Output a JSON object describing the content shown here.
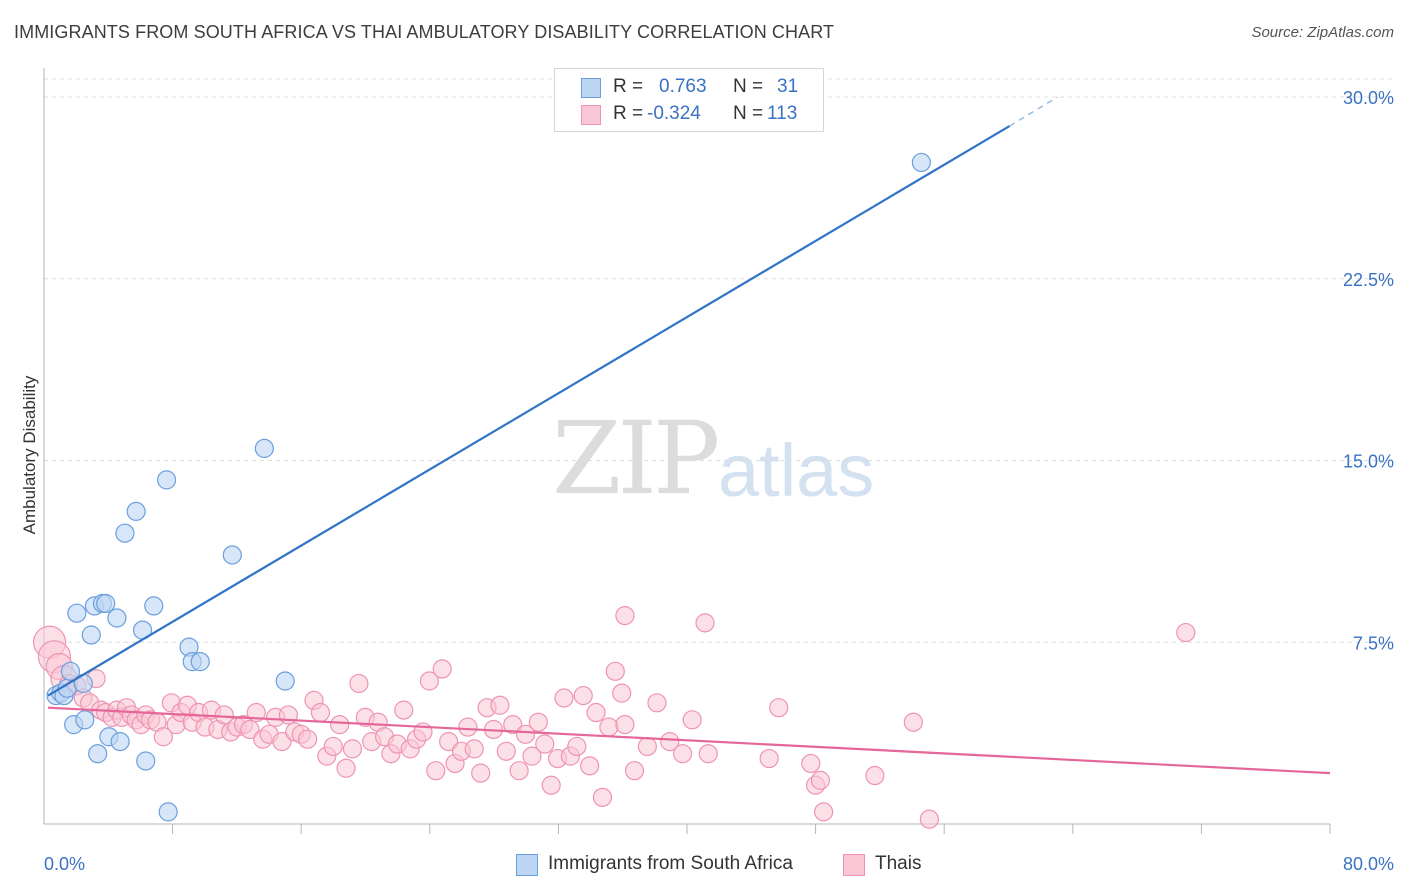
{
  "header": {
    "title": "IMMIGRANTS FROM SOUTH AFRICA VS THAI AMBULATORY DISABILITY CORRELATION CHART",
    "source": "Source: ZipAtlas.com"
  },
  "watermark": {
    "zip": "ZIP",
    "atlas": "atlas"
  },
  "legend": {
    "rows": [
      {
        "r_label": "R =",
        "r_value": "0.763",
        "n_label": "N =",
        "n_value": "31",
        "color": "#7fb0e8"
      },
      {
        "r_label": "R =",
        "r_value": "-0.324",
        "n_label": "N =",
        "n_value": "113",
        "color": "#f5a0bb"
      }
    ]
  },
  "bottom_legend": {
    "series1": "Immigrants from South Africa",
    "series2": "Thais"
  },
  "colors": {
    "blue_fill": "#bcd6f4",
    "blue_stroke": "#6b9fdc",
    "blue_line": "#2f74c8",
    "pink_fill": "#f9c6d6",
    "pink_stroke": "#ee94b2",
    "pink_line": "#e5679a",
    "axis_text": "#3a72c4",
    "grid": "#dcdcdc"
  },
  "chart_data": {
    "type": "scatter",
    "title": "IMMIGRANTS FROM SOUTH AFRICA VS THAI AMBULATORY DISABILITY CORRELATION CHART",
    "xlabel": "",
    "ylabel": "Ambulatory Disability",
    "xlim": [
      0,
      80
    ],
    "ylim": [
      0,
      31.5
    ],
    "x_ticks": [
      "0.0%",
      "80.0%"
    ],
    "y_ticks": [
      {
        "value": 7.5,
        "label": "7.5%"
      },
      {
        "value": 15.0,
        "label": "15.0%"
      },
      {
        "value": 22.5,
        "label": "22.5%"
      },
      {
        "value": 30.0,
        "label": "30.0%"
      }
    ],
    "grid": "horizontal dashed",
    "legend_position": "top-center",
    "series": [
      {
        "name": "Immigrants from South Africa",
        "color": "#6b9fdc",
        "points": [
          [
            0.5,
            5.3
          ],
          [
            0.8,
            5.4
          ],
          [
            1.0,
            5.3
          ],
          [
            1.2,
            5.6
          ],
          [
            1.4,
            6.3
          ],
          [
            1.6,
            4.1
          ],
          [
            1.8,
            8.7
          ],
          [
            2.2,
            5.8
          ],
          [
            2.3,
            4.3
          ],
          [
            2.7,
            7.8
          ],
          [
            2.9,
            9.0
          ],
          [
            3.1,
            2.9
          ],
          [
            3.4,
            9.1
          ],
          [
            3.6,
            9.1
          ],
          [
            3.8,
            3.6
          ],
          [
            4.3,
            8.5
          ],
          [
            4.5,
            3.4
          ],
          [
            4.8,
            12.0
          ],
          [
            5.5,
            12.9
          ],
          [
            5.9,
            8.0
          ],
          [
            6.1,
            2.6
          ],
          [
            6.6,
            9.0
          ],
          [
            7.4,
            14.2
          ],
          [
            7.5,
            0.5
          ],
          [
            8.8,
            7.3
          ],
          [
            9.0,
            6.7
          ],
          [
            9.5,
            6.7
          ],
          [
            11.5,
            11.1
          ],
          [
            13.5,
            15.5
          ],
          [
            14.8,
            5.9
          ],
          [
            54.5,
            27.3
          ]
        ],
        "trend": {
          "x0": 0,
          "y0": 5.3,
          "x1": 60,
          "y1": 28.8,
          "dashed_to": {
            "x": 63,
            "y": 30.0
          }
        }
      },
      {
        "name": "Thais",
        "color": "#ee94b2",
        "points": [
          [
            0.1,
            7.5
          ],
          [
            0.4,
            6.9
          ],
          [
            0.7,
            6.5
          ],
          [
            1.0,
            6.0
          ],
          [
            1.3,
            5.8
          ],
          [
            1.8,
            5.7
          ],
          [
            2.2,
            5.2
          ],
          [
            2.6,
            5.0
          ],
          [
            3.0,
            6.0
          ],
          [
            3.3,
            4.7
          ],
          [
            3.6,
            4.6
          ],
          [
            4.0,
            4.4
          ],
          [
            4.3,
            4.7
          ],
          [
            4.6,
            4.4
          ],
          [
            4.9,
            4.8
          ],
          [
            5.2,
            4.5
          ],
          [
            5.5,
            4.3
          ],
          [
            5.8,
            4.1
          ],
          [
            6.1,
            4.5
          ],
          [
            6.4,
            4.3
          ],
          [
            6.8,
            4.2
          ],
          [
            7.2,
            3.6
          ],
          [
            7.7,
            5.0
          ],
          [
            8.0,
            4.1
          ],
          [
            8.3,
            4.6
          ],
          [
            8.7,
            4.9
          ],
          [
            9.0,
            4.2
          ],
          [
            9.4,
            4.6
          ],
          [
            9.8,
            4.0
          ],
          [
            10.2,
            4.7
          ],
          [
            10.6,
            3.9
          ],
          [
            11.0,
            4.5
          ],
          [
            11.4,
            3.8
          ],
          [
            11.8,
            4.0
          ],
          [
            12.2,
            4.1
          ],
          [
            12.6,
            3.9
          ],
          [
            13.0,
            4.6
          ],
          [
            13.4,
            3.5
          ],
          [
            13.8,
            3.7
          ],
          [
            14.2,
            4.4
          ],
          [
            14.6,
            3.4
          ],
          [
            15.0,
            4.5
          ],
          [
            15.4,
            3.8
          ],
          [
            15.8,
            3.7
          ],
          [
            16.2,
            3.5
          ],
          [
            16.6,
            5.1
          ],
          [
            17.0,
            4.6
          ],
          [
            17.4,
            2.8
          ],
          [
            17.8,
            3.2
          ],
          [
            18.2,
            4.1
          ],
          [
            18.6,
            2.3
          ],
          [
            19.0,
            3.1
          ],
          [
            19.4,
            5.8
          ],
          [
            19.8,
            4.4
          ],
          [
            20.2,
            3.4
          ],
          [
            20.6,
            4.2
          ],
          [
            21.0,
            3.6
          ],
          [
            21.4,
            2.9
          ],
          [
            21.8,
            3.3
          ],
          [
            22.2,
            4.7
          ],
          [
            22.6,
            3.1
          ],
          [
            23.0,
            3.5
          ],
          [
            23.4,
            3.8
          ],
          [
            23.8,
            5.9
          ],
          [
            24.2,
            2.2
          ],
          [
            24.6,
            6.4
          ],
          [
            25.0,
            3.4
          ],
          [
            25.4,
            2.5
          ],
          [
            25.8,
            3.0
          ],
          [
            26.2,
            4.0
          ],
          [
            26.6,
            3.1
          ],
          [
            27.0,
            2.1
          ],
          [
            27.4,
            4.8
          ],
          [
            27.8,
            3.9
          ],
          [
            28.2,
            4.9
          ],
          [
            28.6,
            3.0
          ],
          [
            29.0,
            4.1
          ],
          [
            29.4,
            2.2
          ],
          [
            29.8,
            3.7
          ],
          [
            30.2,
            2.8
          ],
          [
            30.6,
            4.2
          ],
          [
            31.0,
            3.3
          ],
          [
            31.4,
            1.6
          ],
          [
            31.8,
            2.7
          ],
          [
            32.2,
            5.2
          ],
          [
            32.6,
            2.8
          ],
          [
            33.0,
            3.2
          ],
          [
            33.4,
            5.3
          ],
          [
            33.8,
            2.4
          ],
          [
            34.2,
            4.6
          ],
          [
            34.6,
            1.1
          ],
          [
            35.0,
            4.0
          ],
          [
            35.4,
            6.3
          ],
          [
            35.8,
            5.4
          ],
          [
            36.0,
            4.1
          ],
          [
            36.6,
            2.2
          ],
          [
            37.4,
            3.2
          ],
          [
            38.0,
            5.0
          ],
          [
            38.8,
            3.4
          ],
          [
            39.6,
            2.9
          ],
          [
            40.2,
            4.3
          ],
          [
            41.2,
            2.9
          ],
          [
            45.0,
            2.7
          ],
          [
            45.6,
            4.8
          ],
          [
            47.6,
            2.5
          ],
          [
            47.9,
            1.6
          ],
          [
            48.2,
            1.8
          ],
          [
            48.4,
            0.5
          ],
          [
            51.6,
            2.0
          ],
          [
            54.0,
            4.2
          ],
          [
            55.0,
            0.2
          ],
          [
            36.0,
            8.6
          ],
          [
            41.0,
            8.3
          ],
          [
            71.0,
            7.9
          ]
        ],
        "trend": {
          "x0": 0,
          "y0": 4.8,
          "x1": 80,
          "y1": 2.1
        }
      }
    ]
  }
}
